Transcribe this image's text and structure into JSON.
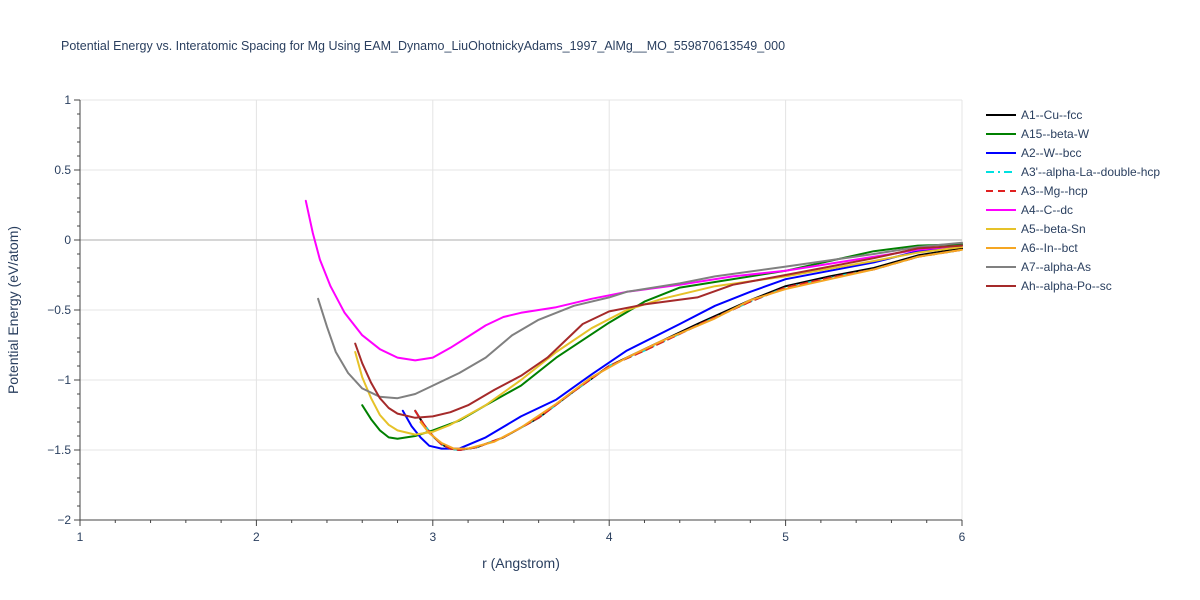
{
  "chart_data": {
    "type": "line",
    "title": "Potential Energy vs. Interatomic Spacing for Mg Using EAM_Dynamo_LiuOhotnickyAdams_1997_AlMg__MO_559870613549_000",
    "xlabel": "r (Angstrom)",
    "ylabel": "Potential Energy (eV/atom)",
    "xlim": [
      1,
      6
    ],
    "ylim": [
      -2,
      1
    ],
    "x_ticks": [
      "1",
      "2",
      "3",
      "4",
      "5",
      "6"
    ],
    "y_ticks": [
      "1",
      "0.5",
      "0",
      "−0.5",
      "−1",
      "−1.5",
      "−2"
    ],
    "grid": true,
    "legend_position": "right",
    "series": [
      {
        "name": "A1--Cu--fcc",
        "color": "#000000",
        "dash": "solid",
        "points": [
          [
            2.9,
            -1.22
          ],
          [
            2.95,
            -1.32
          ],
          [
            3.0,
            -1.4
          ],
          [
            3.05,
            -1.46
          ],
          [
            3.1,
            -1.49
          ],
          [
            3.15,
            -1.5
          ],
          [
            3.25,
            -1.48
          ],
          [
            3.4,
            -1.41
          ],
          [
            3.6,
            -1.27
          ],
          [
            3.8,
            -1.08
          ],
          [
            4.0,
            -0.9
          ],
          [
            4.2,
            -0.78
          ],
          [
            4.5,
            -0.6
          ],
          [
            4.8,
            -0.43
          ],
          [
            5.0,
            -0.33
          ],
          [
            5.25,
            -0.26
          ],
          [
            5.5,
            -0.2
          ],
          [
            5.75,
            -0.11
          ],
          [
            6.0,
            -0.06
          ]
        ]
      },
      {
        "name": "A15--beta-W",
        "color": "#008000",
        "dash": "solid",
        "points": [
          [
            2.6,
            -1.18
          ],
          [
            2.65,
            -1.28
          ],
          [
            2.7,
            -1.36
          ],
          [
            2.75,
            -1.41
          ],
          [
            2.8,
            -1.42
          ],
          [
            2.9,
            -1.4
          ],
          [
            3.0,
            -1.36
          ],
          [
            3.15,
            -1.29
          ],
          [
            3.3,
            -1.18
          ],
          [
            3.5,
            -1.04
          ],
          [
            3.7,
            -0.84
          ],
          [
            4.0,
            -0.59
          ],
          [
            4.2,
            -0.44
          ],
          [
            4.4,
            -0.34
          ],
          [
            4.6,
            -0.3
          ],
          [
            5.0,
            -0.22
          ],
          [
            5.5,
            -0.08
          ],
          [
            5.75,
            -0.04
          ],
          [
            6.0,
            -0.03
          ]
        ]
      },
      {
        "name": "A2--W--bcc",
        "color": "#0000ff",
        "dash": "solid",
        "points": [
          [
            2.83,
            -1.22
          ],
          [
            2.88,
            -1.33
          ],
          [
            2.93,
            -1.41
          ],
          [
            2.98,
            -1.47
          ],
          [
            3.05,
            -1.49
          ],
          [
            3.15,
            -1.49
          ],
          [
            3.3,
            -1.41
          ],
          [
            3.5,
            -1.26
          ],
          [
            3.7,
            -1.14
          ],
          [
            3.9,
            -0.96
          ],
          [
            4.1,
            -0.79
          ],
          [
            4.4,
            -0.6
          ],
          [
            4.6,
            -0.47
          ],
          [
            4.8,
            -0.37
          ],
          [
            5.0,
            -0.28
          ],
          [
            5.25,
            -0.22
          ],
          [
            5.5,
            -0.16
          ],
          [
            5.75,
            -0.08
          ],
          [
            6.0,
            -0.04
          ]
        ]
      },
      {
        "name": "A3'--alpha-La--double-hcp",
        "color": "#00e0e0",
        "dash": "dashdot",
        "points": [
          [
            2.9,
            -1.22
          ],
          [
            2.95,
            -1.32
          ],
          [
            3.0,
            -1.4
          ],
          [
            3.05,
            -1.46
          ],
          [
            3.1,
            -1.49
          ],
          [
            3.15,
            -1.5
          ],
          [
            3.25,
            -1.48
          ],
          [
            3.4,
            -1.41
          ],
          [
            3.6,
            -1.27
          ],
          [
            3.8,
            -1.08
          ],
          [
            4.0,
            -0.9
          ],
          [
            4.2,
            -0.79
          ],
          [
            4.5,
            -0.61
          ],
          [
            4.8,
            -0.44
          ],
          [
            5.0,
            -0.34
          ],
          [
            5.25,
            -0.27
          ],
          [
            5.5,
            -0.21
          ],
          [
            5.75,
            -0.12
          ],
          [
            6.0,
            -0.07
          ]
        ]
      },
      {
        "name": "A3--Mg--hcp",
        "color": "#e02020",
        "dash": "dash",
        "points": [
          [
            2.9,
            -1.22
          ],
          [
            2.95,
            -1.32
          ],
          [
            3.0,
            -1.4
          ],
          [
            3.05,
            -1.46
          ],
          [
            3.1,
            -1.49
          ],
          [
            3.15,
            -1.5
          ],
          [
            3.25,
            -1.48
          ],
          [
            3.4,
            -1.41
          ],
          [
            3.6,
            -1.27
          ],
          [
            3.8,
            -1.08
          ],
          [
            4.0,
            -0.9
          ],
          [
            4.2,
            -0.79
          ],
          [
            4.5,
            -0.61
          ],
          [
            4.8,
            -0.44
          ],
          [
            5.0,
            -0.34
          ],
          [
            5.25,
            -0.27
          ],
          [
            5.5,
            -0.21
          ],
          [
            5.75,
            -0.12
          ],
          [
            6.0,
            -0.07
          ]
        ]
      },
      {
        "name": "A4--C--dc",
        "color": "#ff00ff",
        "dash": "solid",
        "points": [
          [
            2.28,
            0.28
          ],
          [
            2.32,
            0.05
          ],
          [
            2.36,
            -0.14
          ],
          [
            2.42,
            -0.33
          ],
          [
            2.5,
            -0.52
          ],
          [
            2.6,
            -0.68
          ],
          [
            2.7,
            -0.78
          ],
          [
            2.8,
            -0.84
          ],
          [
            2.9,
            -0.86
          ],
          [
            3.0,
            -0.84
          ],
          [
            3.1,
            -0.77
          ],
          [
            3.2,
            -0.69
          ],
          [
            3.3,
            -0.61
          ],
          [
            3.4,
            -0.55
          ],
          [
            3.5,
            -0.52
          ],
          [
            3.7,
            -0.48
          ],
          [
            3.9,
            -0.42
          ],
          [
            4.1,
            -0.37
          ],
          [
            4.4,
            -0.32
          ],
          [
            4.7,
            -0.26
          ],
          [
            5.0,
            -0.22
          ],
          [
            5.5,
            -0.12
          ],
          [
            5.75,
            -0.07
          ],
          [
            6.0,
            -0.04
          ]
        ]
      },
      {
        "name": "A5--beta-Sn",
        "color": "#e6c229",
        "dash": "solid",
        "points": [
          [
            2.56,
            -0.8
          ],
          [
            2.6,
            -0.98
          ],
          [
            2.65,
            -1.13
          ],
          [
            2.7,
            -1.25
          ],
          [
            2.75,
            -1.32
          ],
          [
            2.8,
            -1.36
          ],
          [
            2.9,
            -1.39
          ],
          [
            3.0,
            -1.37
          ],
          [
            3.1,
            -1.32
          ],
          [
            3.3,
            -1.18
          ],
          [
            3.5,
            -1.0
          ],
          [
            3.7,
            -0.8
          ],
          [
            3.9,
            -0.63
          ],
          [
            4.1,
            -0.5
          ],
          [
            4.3,
            -0.42
          ],
          [
            4.6,
            -0.33
          ],
          [
            5.0,
            -0.26
          ],
          [
            5.5,
            -0.15
          ],
          [
            5.75,
            -0.09
          ],
          [
            6.0,
            -0.05
          ]
        ]
      },
      {
        "name": "A6--In--bct",
        "color": "#f5a623",
        "dash": "solid",
        "points": [
          [
            2.93,
            -1.3
          ],
          [
            2.98,
            -1.38
          ],
          [
            3.05,
            -1.45
          ],
          [
            3.12,
            -1.49
          ],
          [
            3.2,
            -1.49
          ],
          [
            3.35,
            -1.44
          ],
          [
            3.5,
            -1.34
          ],
          [
            3.7,
            -1.17
          ],
          [
            3.9,
            -0.98
          ],
          [
            4.1,
            -0.84
          ],
          [
            4.3,
            -0.72
          ],
          [
            4.6,
            -0.56
          ],
          [
            4.8,
            -0.43
          ],
          [
            5.0,
            -0.35
          ],
          [
            5.25,
            -0.28
          ],
          [
            5.5,
            -0.21
          ],
          [
            5.75,
            -0.12
          ],
          [
            6.0,
            -0.07
          ]
        ]
      },
      {
        "name": "A7--alpha-As",
        "color": "#808080",
        "dash": "solid",
        "points": [
          [
            2.35,
            -0.42
          ],
          [
            2.4,
            -0.62
          ],
          [
            2.45,
            -0.8
          ],
          [
            2.52,
            -0.95
          ],
          [
            2.6,
            -1.06
          ],
          [
            2.7,
            -1.12
          ],
          [
            2.8,
            -1.13
          ],
          [
            2.9,
            -1.1
          ],
          [
            3.0,
            -1.04
          ],
          [
            3.15,
            -0.95
          ],
          [
            3.3,
            -0.84
          ],
          [
            3.45,
            -0.68
          ],
          [
            3.6,
            -0.57
          ],
          [
            3.8,
            -0.47
          ],
          [
            4.0,
            -0.41
          ],
          [
            4.1,
            -0.37
          ],
          [
            4.4,
            -0.31
          ],
          [
            4.6,
            -0.26
          ],
          [
            5.0,
            -0.19
          ],
          [
            5.5,
            -0.1
          ],
          [
            5.75,
            -0.05
          ],
          [
            6.0,
            -0.02
          ]
        ]
      },
      {
        "name": "Ah--alpha-Po--sc",
        "color": "#a52a2a",
        "dash": "solid",
        "points": [
          [
            2.56,
            -0.74
          ],
          [
            2.6,
            -0.88
          ],
          [
            2.65,
            -1.02
          ],
          [
            2.7,
            -1.13
          ],
          [
            2.75,
            -1.2
          ],
          [
            2.8,
            -1.24
          ],
          [
            2.9,
            -1.27
          ],
          [
            3.0,
            -1.26
          ],
          [
            3.1,
            -1.23
          ],
          [
            3.2,
            -1.18
          ],
          [
            3.35,
            -1.07
          ],
          [
            3.5,
            -0.97
          ],
          [
            3.65,
            -0.84
          ],
          [
            3.85,
            -0.6
          ],
          [
            4.0,
            -0.51
          ],
          [
            4.2,
            -0.46
          ],
          [
            4.5,
            -0.41
          ],
          [
            4.7,
            -0.32
          ],
          [
            5.0,
            -0.25
          ],
          [
            5.25,
            -0.19
          ],
          [
            5.5,
            -0.13
          ],
          [
            5.75,
            -0.06
          ],
          [
            6.0,
            -0.04
          ]
        ]
      }
    ]
  }
}
